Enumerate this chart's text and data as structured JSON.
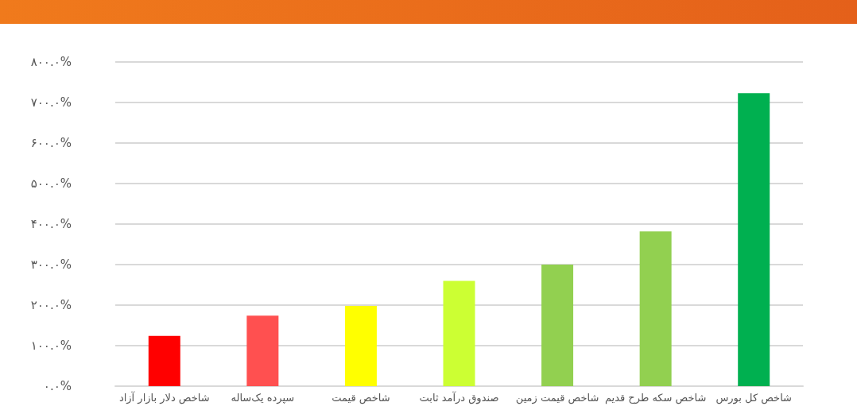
{
  "chart_data": {
    "type": "bar",
    "categories": [
      "شاخص دلار بازار آزاد",
      "سپرده یک‌ساله",
      "شاخص قیمت",
      "صندوق درآمد ثابت",
      "شاخص قیمت زمین",
      "شاخص سکه طرح قدیم",
      "شاخص کل بورس"
    ],
    "values": [
      124,
      174,
      198,
      260,
      300,
      382,
      723
    ],
    "colors": [
      "#ff0000",
      "#ff5050",
      "#ffff00",
      "#ccff33",
      "#92d050",
      "#92d050",
      "#00b050"
    ],
    "ylim": [
      0,
      800
    ],
    "yticks": [
      {
        "value": 0,
        "label": "۰.۰%"
      },
      {
        "value": 100,
        "label": "۱۰۰.۰%"
      },
      {
        "value": 200,
        "label": "۲۰۰.۰%"
      },
      {
        "value": 300,
        "label": "۳۰۰.۰%"
      },
      {
        "value": 400,
        "label": "۴۰۰.۰%"
      },
      {
        "value": 500,
        "label": "۵۰۰.۰%"
      },
      {
        "value": 600,
        "label": "۶۰۰.۰%"
      },
      {
        "value": 700,
        "label": "۷۰۰.۰%"
      },
      {
        "value": 800,
        "label": "۸۰۰.۰%"
      }
    ],
    "grid": "y"
  }
}
